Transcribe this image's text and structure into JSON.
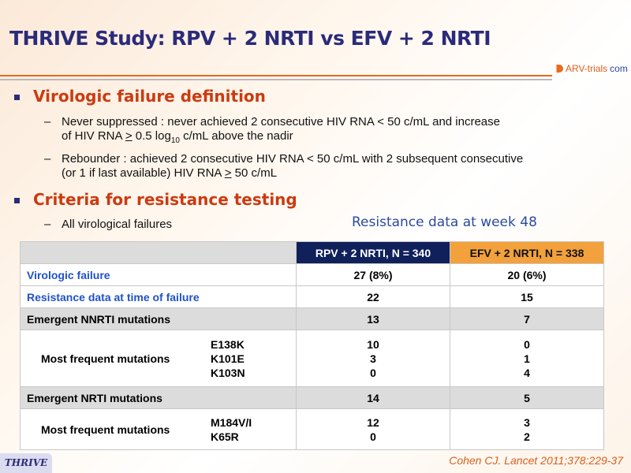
{
  "title": "THRIVE Study: RPV + 2 NRTI vs EFV + 2 NRTI",
  "logo": {
    "text": "ARV-trials",
    "suffix": "com"
  },
  "bullets": [
    {
      "heading": "Virologic failure definition",
      "subs": [
        {
          "lines": [
            "Never suppressed : never achieved 2 consecutive HIV RNA < 50 c/mL and increase",
            "of HIV RNA ≥ 0.5 log10 c/mL above the nadir"
          ]
        },
        {
          "lines": [
            "Rebounder : achieved 2 consecutive HIV RNA < 50 c/mL with 2 subsequent consecutive",
            "(or 1 if last available) HIV RNA ≥ 50 c/mL"
          ]
        }
      ]
    },
    {
      "heading": "Criteria for resistance testing",
      "subs": [
        {
          "lines": [
            "All virological failures"
          ]
        }
      ]
    }
  ],
  "table_title": "Resistance data at week 48",
  "table": {
    "headers": [
      "RPV + 2 NRTI, N = 340",
      "EFV + 2 NRTI, N = 338"
    ],
    "rows": [
      {
        "label": "Virologic failure",
        "rpv": "27 (8%)",
        "efv": "20 (6%)"
      },
      {
        "label": "Resistance data at time of failure",
        "rpv": "22",
        "efv": "15"
      },
      {
        "label": "Emergent NNRTI mutations",
        "rpv": "13",
        "efv": "7"
      },
      {
        "label": "Most frequent mutations",
        "muts": [
          "E138K",
          "K101E",
          "K103N"
        ],
        "rpv": [
          "10",
          "3",
          "0"
        ],
        "efv": [
          "0",
          "1",
          "4"
        ]
      },
      {
        "label": "Emergent NRTI mutations",
        "rpv": "14",
        "efv": "5"
      },
      {
        "label": "Most frequent mutations",
        "muts": [
          "M184V/I",
          "K65R"
        ],
        "rpv": [
          "12",
          "0"
        ],
        "efv": [
          "3",
          "2"
        ]
      }
    ]
  },
  "footer": {
    "badge": "THRIVE",
    "citation": "Cohen CJ. Lancet 2011;378:229-37"
  }
}
